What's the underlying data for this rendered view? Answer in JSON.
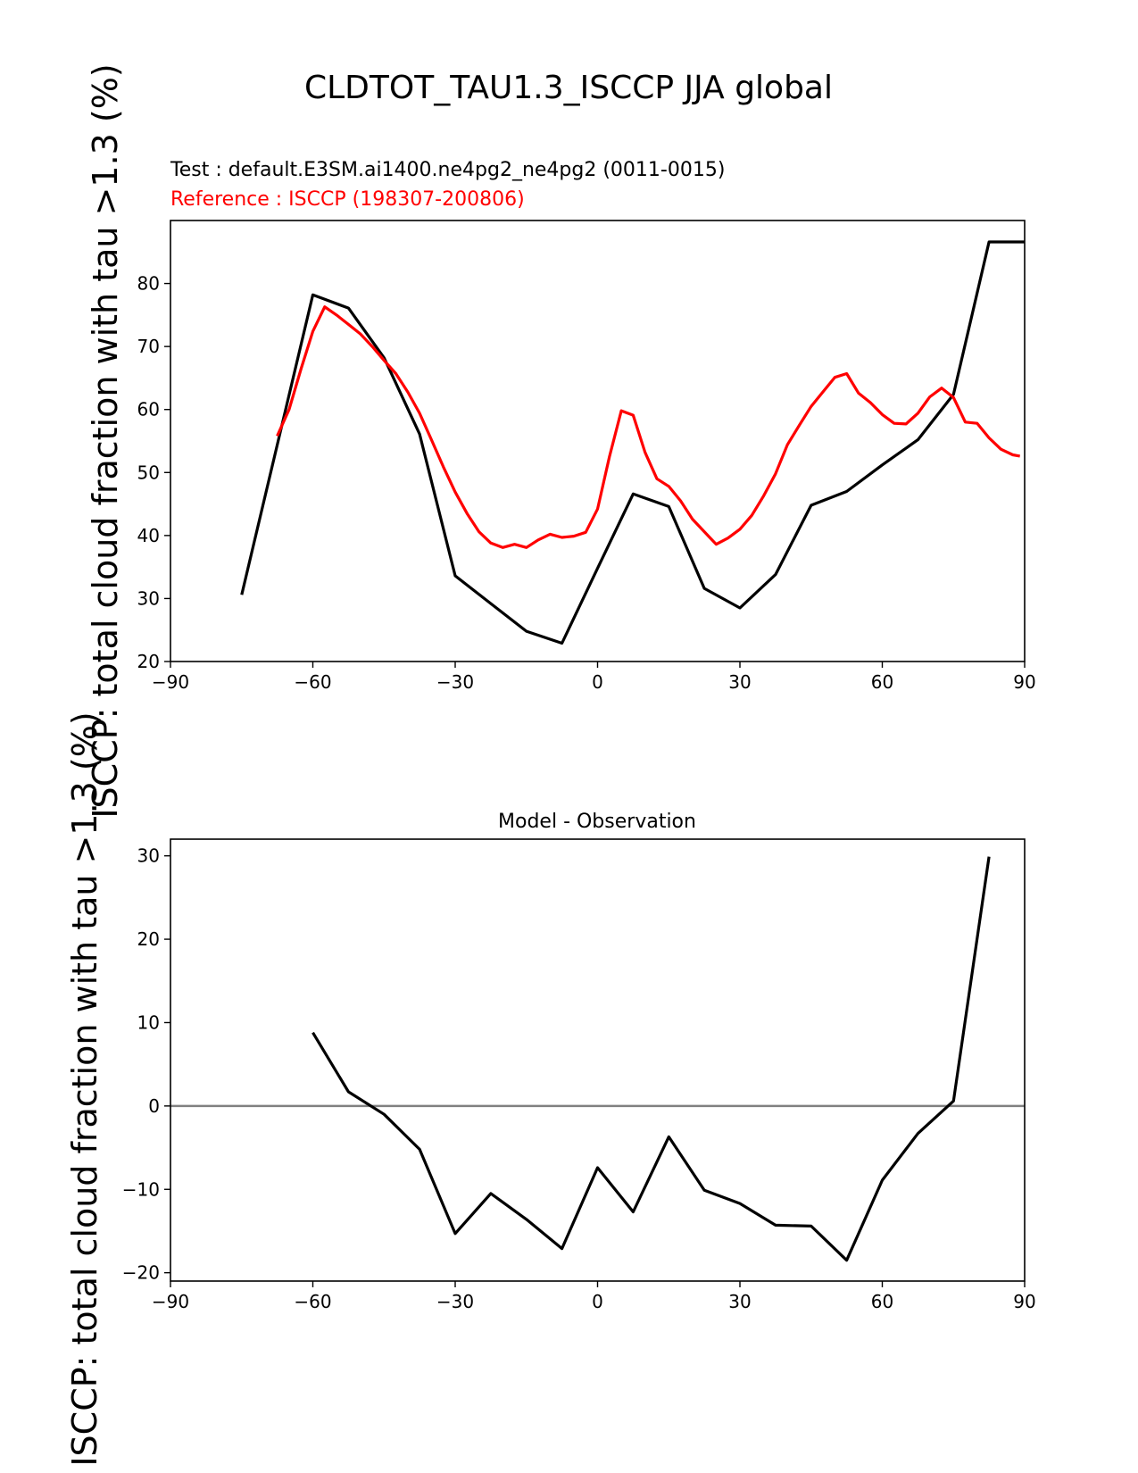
{
  "figure": {
    "suptitle": "CLDTOT_TAU1.3_ISCCP JJA global"
  },
  "chart_data": [
    {
      "type": "line",
      "title": "",
      "subtitle_test": "Test : default.E3SM.ai1400.ne4pg2_ne4pg2 (0011-0015)",
      "subtitle_reference": "Reference : ISCCP (198307-200806)",
      "xlabel": "",
      "ylabel": "ISCCP: total cloud fraction with tau >1.3 (%)",
      "xlim": [
        -90,
        90
      ],
      "ylim": [
        20,
        90
      ],
      "xticks": [
        -90,
        -60,
        -30,
        0,
        30,
        60,
        90
      ],
      "xtick_labels": [
        "−90",
        "−60",
        "−30",
        "0",
        "30",
        "60",
        "90"
      ],
      "yticks": [
        20,
        30,
        40,
        50,
        60,
        70,
        80
      ],
      "ytick_labels": [
        "20",
        "30",
        "40",
        "50",
        "60",
        "70",
        "80"
      ],
      "grid": false,
      "colors": {
        "test": "#000000",
        "reference": "#ff0000"
      },
      "series": [
        {
          "key": "test",
          "x": [
            -75,
            -60,
            -52.5,
            -45,
            -37.5,
            -30,
            -22.5,
            -15,
            -7.5,
            0,
            7.5,
            15,
            22.5,
            30,
            37.5,
            45,
            52.5,
            60,
            67.5,
            75,
            82.5,
            90
          ],
          "y": [
            30.6,
            78.2,
            76.1,
            68.2,
            56.1,
            33.6,
            29.2,
            24.8,
            22.9,
            34.8,
            46.6,
            44.6,
            31.6,
            28.5,
            33.8,
            44.8,
            47.0,
            51.2,
            55.2,
            62.4,
            86.6,
            86.6
          ]
        },
        {
          "key": "reference",
          "x": [
            -67.5,
            -65,
            -62.5,
            -60,
            -57.5,
            -55,
            -52.5,
            -50,
            -47.5,
            -45,
            -42.5,
            -40,
            -37.5,
            -35,
            -32.5,
            -30,
            -27.5,
            -25,
            -22.5,
            -20,
            -17.5,
            -15,
            -12.5,
            -10,
            -7.5,
            -5,
            -2.5,
            0,
            2.5,
            5,
            7.5,
            10,
            12.5,
            15,
            17.5,
            20,
            22.5,
            25,
            27.5,
            30,
            32.5,
            35,
            37.5,
            40,
            42.5,
            45,
            47.5,
            50,
            52.5,
            55,
            57.5,
            60,
            62.5,
            65,
            67.5,
            70,
            72.5,
            75,
            77.5,
            80,
            82.5,
            85,
            87.5,
            89
          ],
          "y": [
            55.8,
            60.0,
            66.4,
            72.4,
            76.3,
            75.0,
            73.5,
            72.0,
            70.0,
            67.8,
            65.7,
            62.8,
            59.4,
            55.2,
            50.9,
            46.9,
            43.5,
            40.6,
            38.8,
            38.1,
            38.6,
            38.1,
            39.3,
            40.2,
            39.7,
            39.9,
            40.5,
            44.2,
            52.5,
            59.8,
            59.1,
            53.2,
            49.0,
            47.8,
            45.5,
            42.6,
            40.6,
            38.6,
            39.6,
            41.0,
            43.2,
            46.3,
            49.8,
            54.4,
            57.5,
            60.5,
            62.8,
            65.1,
            65.7,
            62.6,
            61.1,
            59.2,
            57.8,
            57.7,
            59.4,
            62.0,
            63.4,
            61.9,
            58.0,
            57.8,
            55.5,
            53.7,
            52.8,
            52.6
          ]
        }
      ]
    },
    {
      "type": "line",
      "title": "Model - Observation",
      "xlabel": "",
      "ylabel": "ISCCP: total cloud fraction with tau >1.3 (%)",
      "xlim": [
        -90,
        90
      ],
      "ylim": [
        -21,
        32
      ],
      "xticks": [
        -90,
        -60,
        -30,
        0,
        30,
        60,
        90
      ],
      "xtick_labels": [
        "−90",
        "−60",
        "−30",
        "0",
        "30",
        "60",
        "90"
      ],
      "yticks": [
        -20,
        -10,
        0,
        10,
        20,
        30
      ],
      "ytick_labels": [
        "−20",
        "−10",
        "0",
        "10",
        "20",
        "30"
      ],
      "grid": false,
      "zero_line": true,
      "colors": {
        "difference": "#000000",
        "zero_line": "#808080"
      },
      "series": [
        {
          "key": "difference",
          "x": [
            -60,
            -52.5,
            -45,
            -37.5,
            -30,
            -22.5,
            -15,
            -7.5,
            0,
            7.5,
            15,
            22.5,
            30,
            37.5,
            45,
            52.5,
            60,
            67.5,
            75,
            82.5
          ],
          "y": [
            8.8,
            1.7,
            -1.0,
            -5.2,
            -15.3,
            -10.5,
            -13.6,
            -17.1,
            -7.4,
            -12.7,
            -3.7,
            -10.1,
            -11.7,
            -14.3,
            -14.4,
            -18.5,
            -8.9,
            -3.3,
            0.6,
            29.9
          ]
        }
      ]
    }
  ]
}
